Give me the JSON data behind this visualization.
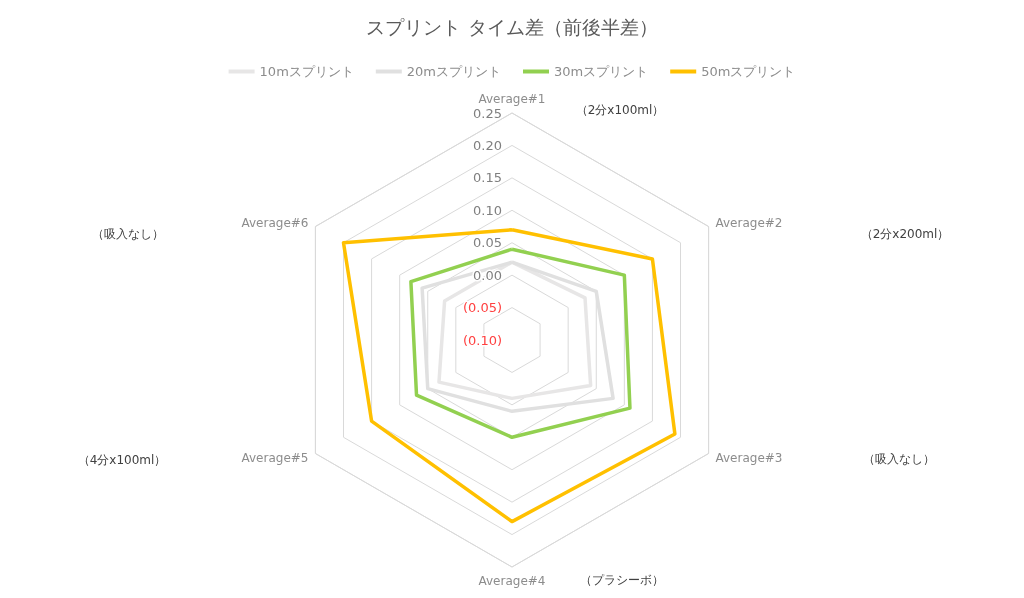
{
  "chart_data": {
    "type": "radar",
    "title": "スプリント タイム差（前後半差）",
    "categories": [
      "Average#1",
      "Average#2",
      "Average#3",
      "Average#4",
      "Average#5",
      "Average#6"
    ],
    "series": [
      {
        "name": "10mスプリント",
        "color": "#e7e6e6",
        "values": [
          0.02,
          0.03,
          0.04,
          -0.01,
          0.03,
          0.02
        ]
      },
      {
        "name": "20mスプリント",
        "color": "#e0e0e0",
        "values": [
          0.02,
          0.05,
          0.08,
          0.01,
          0.05,
          0.06
        ]
      },
      {
        "name": "30mスプリント",
        "color": "#92d050",
        "values": [
          0.04,
          0.1,
          0.11,
          0.05,
          0.07,
          0.08
        ]
      },
      {
        "name": "50mスプリント",
        "color": "#ffc000",
        "values": [
          0.07,
          0.15,
          0.19,
          0.18,
          0.15,
          0.2
        ]
      }
    ],
    "ylim": [
      -0.1,
      0.25
    ],
    "yticks": [
      {
        "value": -0.1,
        "label": "(0.10)"
      },
      {
        "value": -0.05,
        "label": "(0.05)"
      },
      {
        "value": 0,
        "label": "0.00"
      },
      {
        "value": 0.05,
        "label": "0.05"
      },
      {
        "value": 0.1,
        "label": "0.10"
      },
      {
        "value": 0.15,
        "label": "0.15"
      },
      {
        "value": 0.2,
        "label": "0.20"
      },
      {
        "value": 0.25,
        "label": "0.25"
      }
    ],
    "annotations": [
      "（2分x100ml）",
      "（2分x200ml）",
      "（吸入なし）",
      "（プラシーボ）",
      "（4分x100ml）",
      "（吸入なし）"
    ],
    "legend": "top",
    "marker": "none",
    "line_style": "solid",
    "grid": true
  }
}
